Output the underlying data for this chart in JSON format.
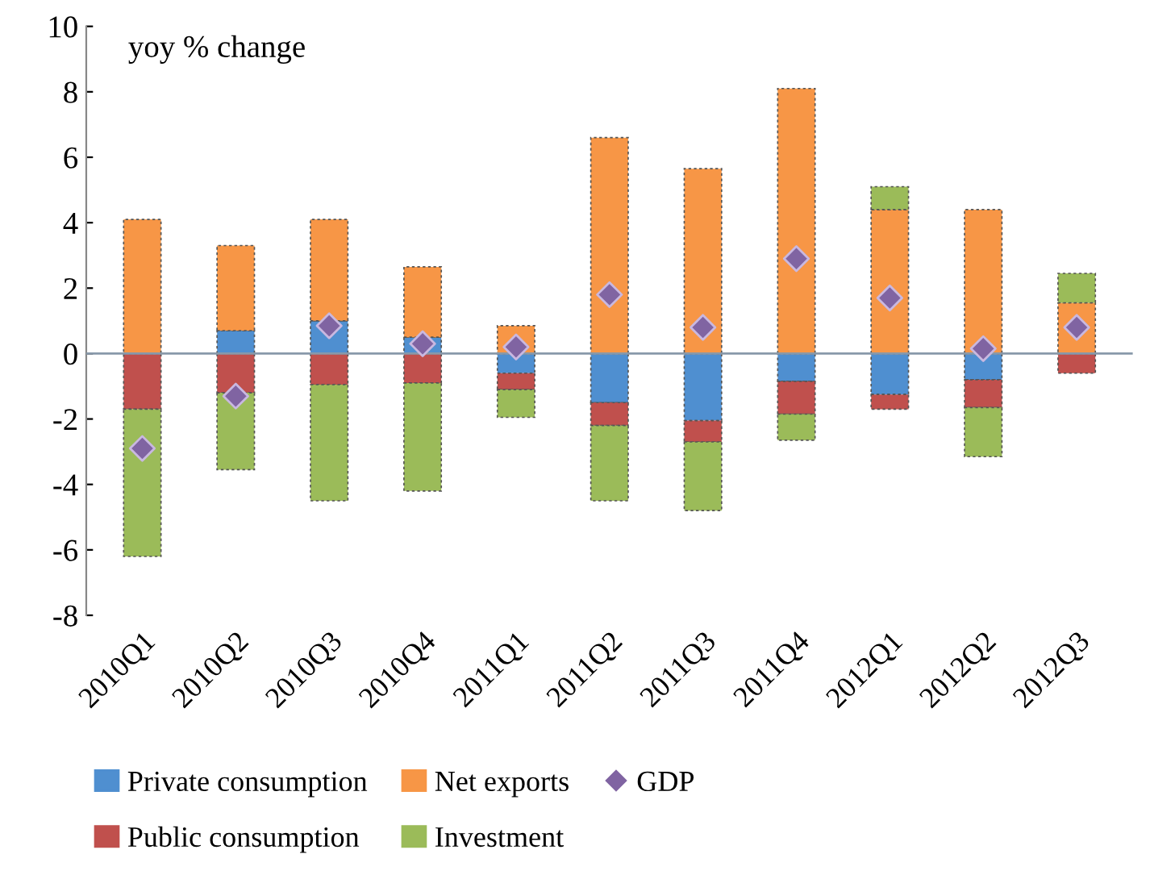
{
  "chart_data": {
    "type": "bar",
    "stacked": true,
    "annotations": [
      "yoy % change"
    ],
    "categories": [
      "2010Q1",
      "2010Q2",
      "2010Q3",
      "2010Q4",
      "2011Q1",
      "2011Q2",
      "2011Q3",
      "2011Q4",
      "2012Q1",
      "2012Q2",
      "2012Q3"
    ],
    "series": [
      {
        "name": "Private consumption",
        "color": "#4f8fd0",
        "values": [
          0,
          0.7,
          1.0,
          0.5,
          -0.6,
          -1.5,
          -2.05,
          -0.85,
          -1.25,
          -0.8,
          0
        ]
      },
      {
        "name": "Public consumption",
        "color": "#c0504d",
        "values": [
          -1.7,
          -1.2,
          -0.95,
          -0.9,
          -0.5,
          -0.7,
          -0.65,
          -1.0,
          -0.45,
          -0.85,
          -0.6
        ]
      },
      {
        "name": "Net exports",
        "color": "#f79646",
        "values": [
          4.1,
          2.6,
          3.1,
          2.15,
          0.85,
          6.6,
          5.65,
          8.1,
          4.4,
          4.4,
          1.55
        ]
      },
      {
        "name": "Investment",
        "color": "#9bbb59",
        "values": [
          -4.5,
          -2.35,
          -3.55,
          -3.3,
          -0.85,
          -2.3,
          -2.1,
          -0.8,
          0.7,
          -1.5,
          0.9
        ]
      },
      {
        "name": "GDP",
        "type": "scatter",
        "marker": "diamond",
        "color": "#8064a2",
        "values": [
          -2.9,
          -1.3,
          0.85,
          0.3,
          0.2,
          1.8,
          0.8,
          2.9,
          1.7,
          0.15,
          0.8
        ]
      }
    ],
    "ylim": [
      -8,
      10
    ],
    "yticks": [
      -8,
      -6,
      -4,
      -2,
      0,
      2,
      4,
      6,
      8,
      10
    ],
    "legend": "bottom"
  }
}
